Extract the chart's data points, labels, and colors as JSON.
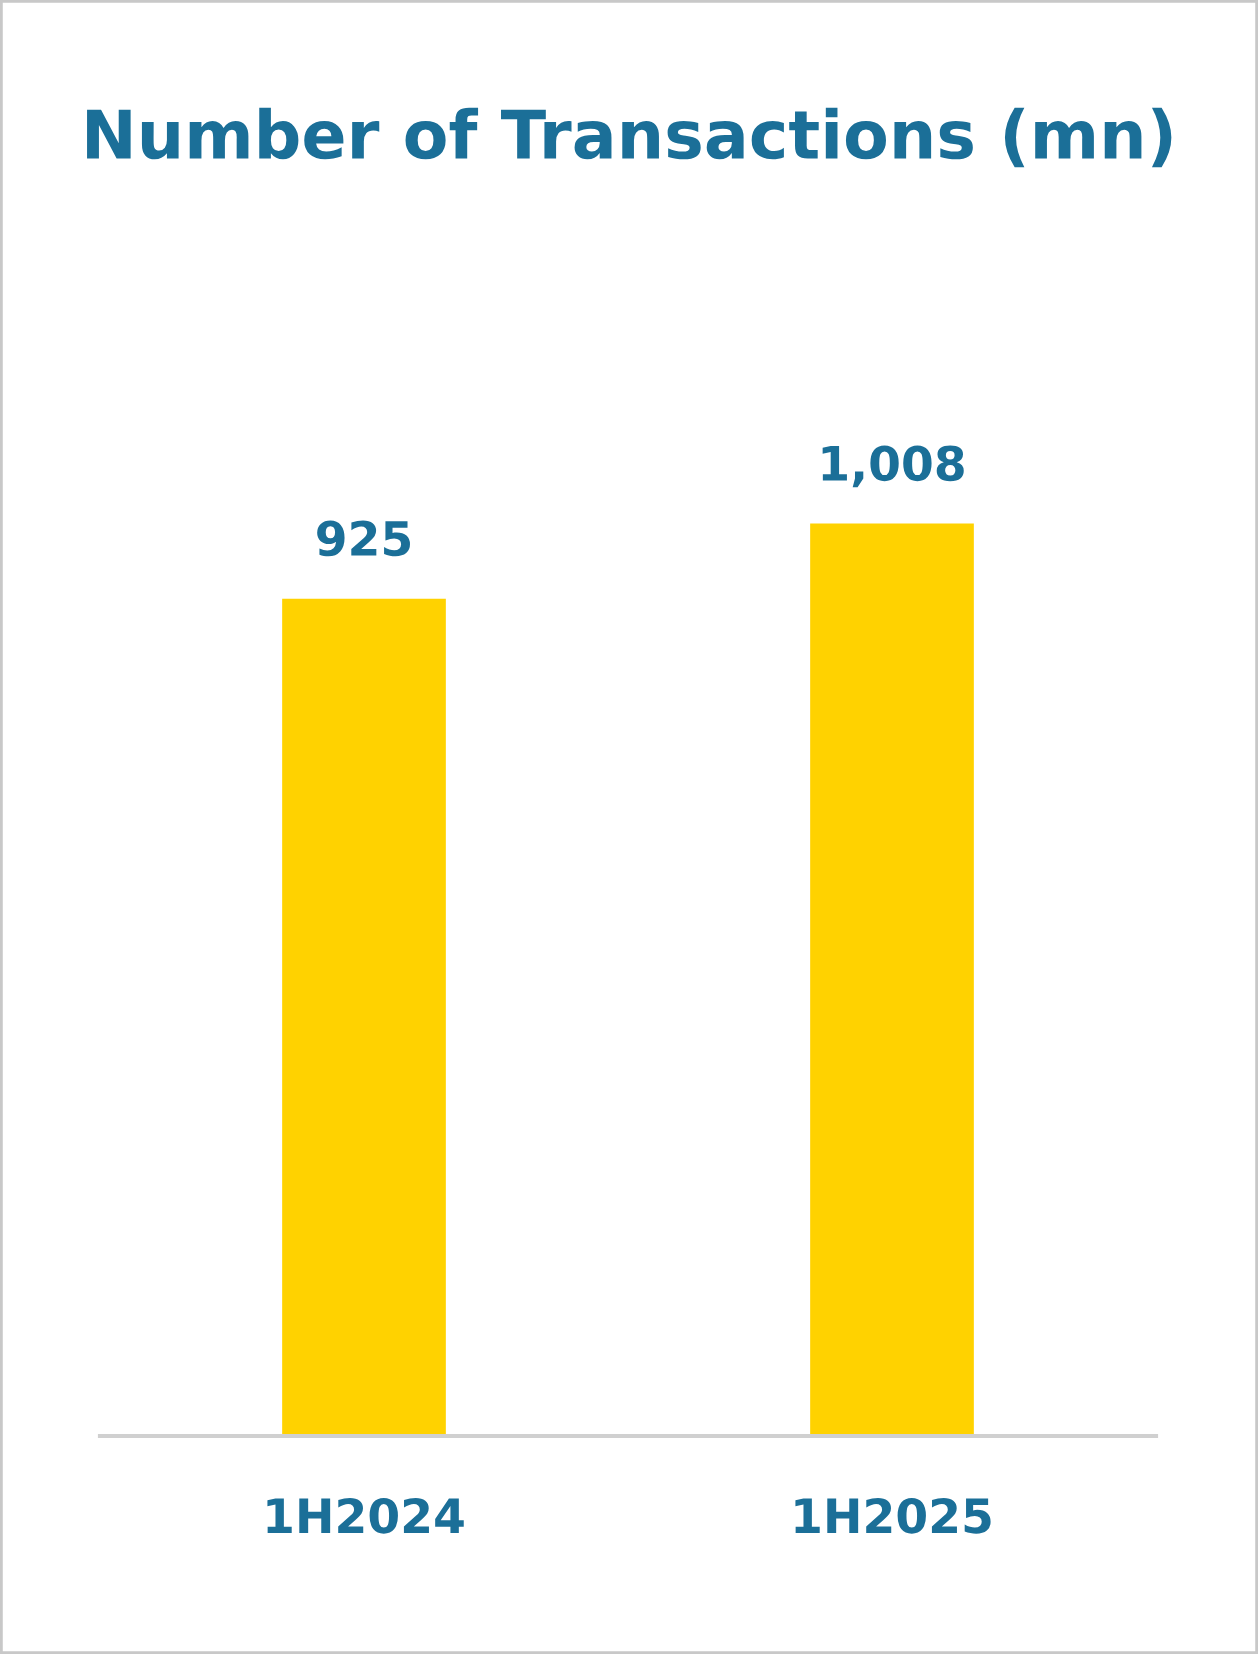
{
  "chart_data": {
    "type": "bar",
    "title": "Number of Transactions (mn)",
    "categories": [
      "1H2024",
      "1H2025"
    ],
    "values": [
      925,
      1008
    ],
    "color": "#ffd200",
    "value_labels": [
      "925",
      "1,008"
    ],
    "grid": false,
    "legend": false,
    "tick_labels": "x"
  }
}
